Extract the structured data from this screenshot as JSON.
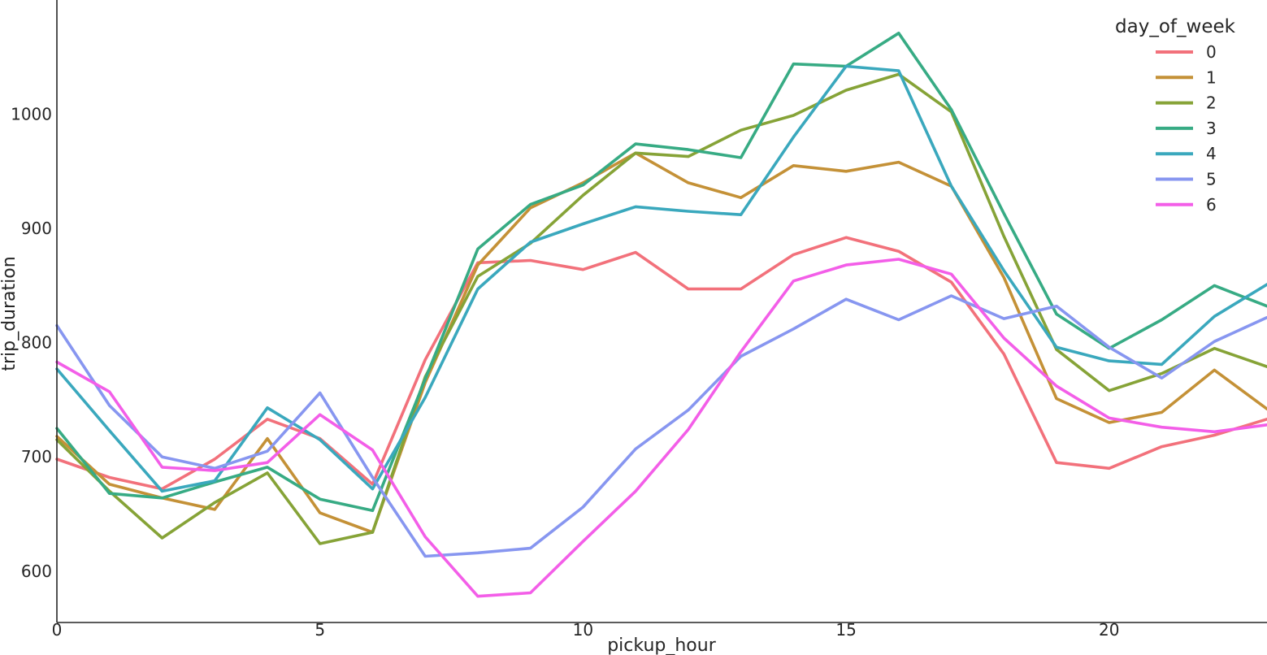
{
  "chart_data": {
    "type": "line",
    "title": "",
    "xlabel": "pickup_hour",
    "ylabel": "trip_duration",
    "xlim": [
      0,
      23
    ],
    "ylim": [
      555,
      1100
    ],
    "xticks": [
      0,
      5,
      10,
      15,
      20
    ],
    "yticks": [
      600,
      700,
      800,
      900,
      1000
    ],
    "grid": false,
    "legend": {
      "title": "day_of_week",
      "position": "top-right"
    },
    "x": [
      0,
      1,
      2,
      3,
      4,
      5,
      6,
      7,
      8,
      9,
      10,
      11,
      12,
      13,
      14,
      15,
      16,
      17,
      18,
      19,
      20,
      21,
      22,
      23
    ],
    "series": [
      {
        "name": "0",
        "color": "#f2717b",
        "values": [
          698,
          682,
          672,
          698,
          733,
          716,
          676,
          785,
          870,
          872,
          864,
          879,
          847,
          847,
          877,
          892,
          880,
          853,
          790,
          695,
          690,
          709,
          719,
          733
        ]
      },
      {
        "name": "1",
        "color": "#c49137",
        "values": [
          718,
          676,
          664,
          654,
          716,
          651,
          634,
          765,
          868,
          918,
          940,
          966,
          940,
          927,
          955,
          950,
          958,
          937,
          857,
          751,
          730,
          739,
          776,
          742
        ]
      },
      {
        "name": "2",
        "color": "#86a337",
        "values": [
          715,
          670,
          629,
          660,
          686,
          624,
          634,
          770,
          858,
          887,
          929,
          966,
          963,
          986,
          999,
          1021,
          1035,
          1002,
          893,
          794,
          758,
          773,
          795,
          779
        ]
      },
      {
        "name": "3",
        "color": "#37ab84",
        "values": [
          725,
          668,
          664,
          678,
          691,
          663,
          653,
          768,
          882,
          921,
          938,
          974,
          969,
          962,
          1044,
          1042,
          1071,
          1004,
          913,
          825,
          795,
          820,
          850,
          832
        ]
      },
      {
        "name": "4",
        "color": "#3aa8bd",
        "values": [
          777,
          723,
          670,
          679,
          743,
          715,
          672,
          752,
          847,
          888,
          904,
          919,
          915,
          912,
          980,
          1042,
          1038,
          937,
          863,
          796,
          784,
          781,
          823,
          851
        ]
      },
      {
        "name": "5",
        "color": "#8796f0",
        "values": [
          815,
          745,
          700,
          690,
          705,
          756,
          682,
          613,
          616,
          620,
          656,
          707,
          741,
          788,
          812,
          838,
          820,
          841,
          821,
          832,
          796,
          769,
          801,
          822
        ]
      },
      {
        "name": "6",
        "color": "#f35ee8",
        "values": [
          783,
          757,
          691,
          688,
          695,
          737,
          706,
          630,
          578,
          581,
          626,
          670,
          724,
          792,
          854,
          868,
          873,
          860,
          804,
          762,
          734,
          726,
          722,
          728
        ]
      }
    ]
  }
}
